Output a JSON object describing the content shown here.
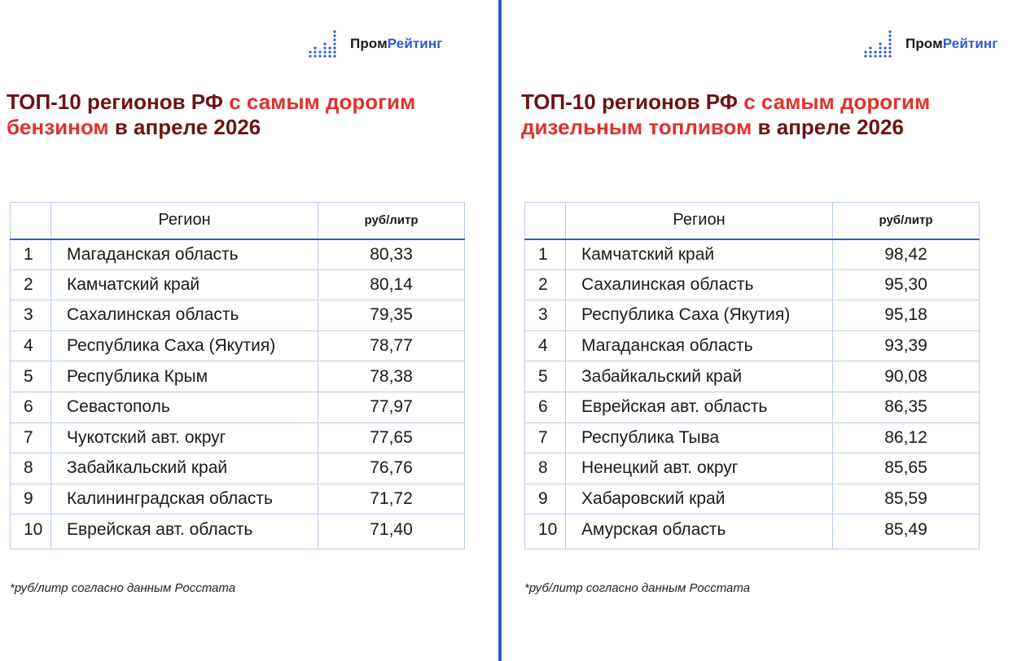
{
  "brand": {
    "logo_prefix": "Пром",
    "logo_suffix": "Рейтинг",
    "accent_color": "#2f5bd2",
    "title_dark_color": "#6b1414",
    "title_red_color": "#e0322d"
  },
  "left": {
    "title_part1": "ТОП-10 регионов РФ ",
    "title_part2": "с самым дорогим бензином",
    "title_part3": " в апреле 2026",
    "header_region": "Регион",
    "header_unit": "руб/литр",
    "rows": [
      {
        "num": "1",
        "region": "Магаданская область",
        "value": "80,33"
      },
      {
        "num": "2",
        "region": "Камчатский край",
        "value": "80,14"
      },
      {
        "num": "3",
        "region": "Сахалинская область",
        "value": "79,35"
      },
      {
        "num": "4",
        "region": "Республика Саха (Якутия)",
        "value": "78,77"
      },
      {
        "num": "5",
        "region": "Республика Крым",
        "value": "78,38"
      },
      {
        "num": "6",
        "region": "Севастополь",
        "value": "77,97"
      },
      {
        "num": "7",
        "region": "Чукотский авт. округ",
        "value": "77,65"
      },
      {
        "num": "8",
        "region": "Забайкальский край",
        "value": "76,76"
      },
      {
        "num": "9",
        "region": "Калининградская область",
        "value": "71,72"
      },
      {
        "num": "10",
        "region": "Еврейская авт. область",
        "value": "71,40"
      }
    ],
    "note": "*руб/литр согласно данным Росстата"
  },
  "right": {
    "title_part1": "ТОП-10 регионов РФ ",
    "title_part2": "с самым дорогим дизельным топливом",
    "title_part3": " в апреле 2026",
    "header_region": "Регион",
    "header_unit": "руб/литр",
    "rows": [
      {
        "num": "1",
        "region": "Камчатский край",
        "value": "98,42"
      },
      {
        "num": "2",
        "region": "Сахалинская область",
        "value": "95,30"
      },
      {
        "num": "3",
        "region": "Республика Саха (Якутия)",
        "value": "95,18"
      },
      {
        "num": "4",
        "region": "Магаданская область",
        "value": "93,39"
      },
      {
        "num": "5",
        "region": "Забайкальский край",
        "value": "90,08"
      },
      {
        "num": "6",
        "region": "Еврейская авт. область",
        "value": "86,35"
      },
      {
        "num": "7",
        "region": "Республика Тыва",
        "value": "86,12"
      },
      {
        "num": "8",
        "region": "Ненецкий авт. округ",
        "value": "85,65"
      },
      {
        "num": "9",
        "region": "Хабаровский край",
        "value": "85,59"
      },
      {
        "num": "10",
        "region": "Амурская область",
        "value": "85,49"
      }
    ],
    "note": "*руб/литр согласно данным Росстата"
  }
}
